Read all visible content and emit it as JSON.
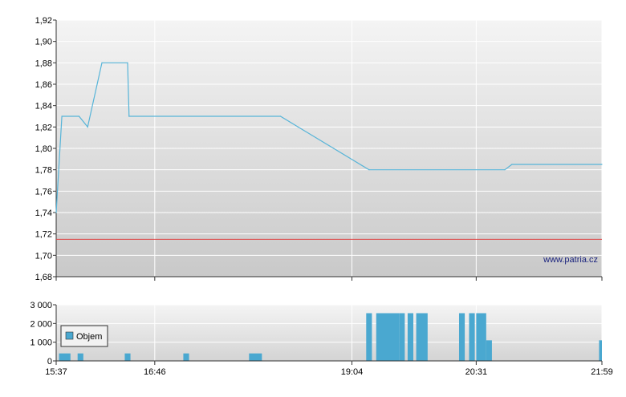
{
  "chart_data": [
    {
      "type": "line",
      "panel": "price",
      "title": "",
      "xlabel": "",
      "ylabel": "",
      "ylim": [
        1.68,
        1.92
      ],
      "yticks": [
        "1,68",
        "1,70",
        "1,72",
        "1,74",
        "1,76",
        "1,78",
        "1,80",
        "1,82",
        "1,84",
        "1,86",
        "1,88",
        "1,90",
        "1,92"
      ],
      "xticks": [
        "15:37",
        "16:46",
        "19:04",
        "20:31",
        "21:59"
      ],
      "grid": true,
      "watermark": "www.patria.cz",
      "reference_line": {
        "value": 1.715,
        "color": "#e04040"
      },
      "series": [
        {
          "color": "#56b4d8",
          "points": [
            [
              "15:37",
              1.74
            ],
            [
              "15:41",
              1.83
            ],
            [
              "15:53",
              1.83
            ],
            [
              "15:59",
              1.82
            ],
            [
              "16:09",
              1.88
            ],
            [
              "16:27",
              1.88
            ],
            [
              "16:28",
              1.83
            ],
            [
              "18:14",
              1.83
            ],
            [
              "19:16",
              1.78
            ],
            [
              "20:51",
              1.78
            ],
            [
              "20:56",
              1.785
            ],
            [
              "21:59",
              1.785
            ]
          ]
        }
      ]
    },
    {
      "type": "bar",
      "panel": "volume",
      "ylim": [
        0,
        3000
      ],
      "yticks": [
        "0",
        "1 000",
        "2 000",
        "3 000"
      ],
      "xticks": [
        "15:37",
        "16:46",
        "19:04",
        "20:31",
        "21:59"
      ],
      "legend": {
        "label": "Objem",
        "placement": "top-left"
      },
      "series": [
        {
          "name": "Objem",
          "color": "#4aa8d0",
          "bars": [
            {
              "start": "15:39",
              "end": "15:47",
              "value": 400
            },
            {
              "start": "15:52",
              "end": "15:56",
              "value": 400
            },
            {
              "start": "16:25",
              "end": "16:29",
              "value": 400
            },
            {
              "start": "17:06",
              "end": "17:10",
              "value": 400
            },
            {
              "start": "17:52",
              "end": "18:01",
              "value": 400
            },
            {
              "start": "19:14",
              "end": "19:18",
              "value": 2550
            },
            {
              "start": "19:21",
              "end": "19:37",
              "value": 2550
            },
            {
              "start": "19:37",
              "end": "19:41",
              "value": 2550
            },
            {
              "start": "19:43",
              "end": "19:47",
              "value": 2550
            },
            {
              "start": "19:49",
              "end": "19:57",
              "value": 2550
            },
            {
              "start": "20:19",
              "end": "20:23",
              "value": 2550
            },
            {
              "start": "20:26",
              "end": "20:30",
              "value": 2550
            },
            {
              "start": "20:31",
              "end": "20:38",
              "value": 2550
            },
            {
              "start": "20:38",
              "end": "20:42",
              "value": 1100
            },
            {
              "start": "21:57",
              "end": "21:59",
              "value": 1100
            }
          ]
        }
      ]
    }
  ]
}
